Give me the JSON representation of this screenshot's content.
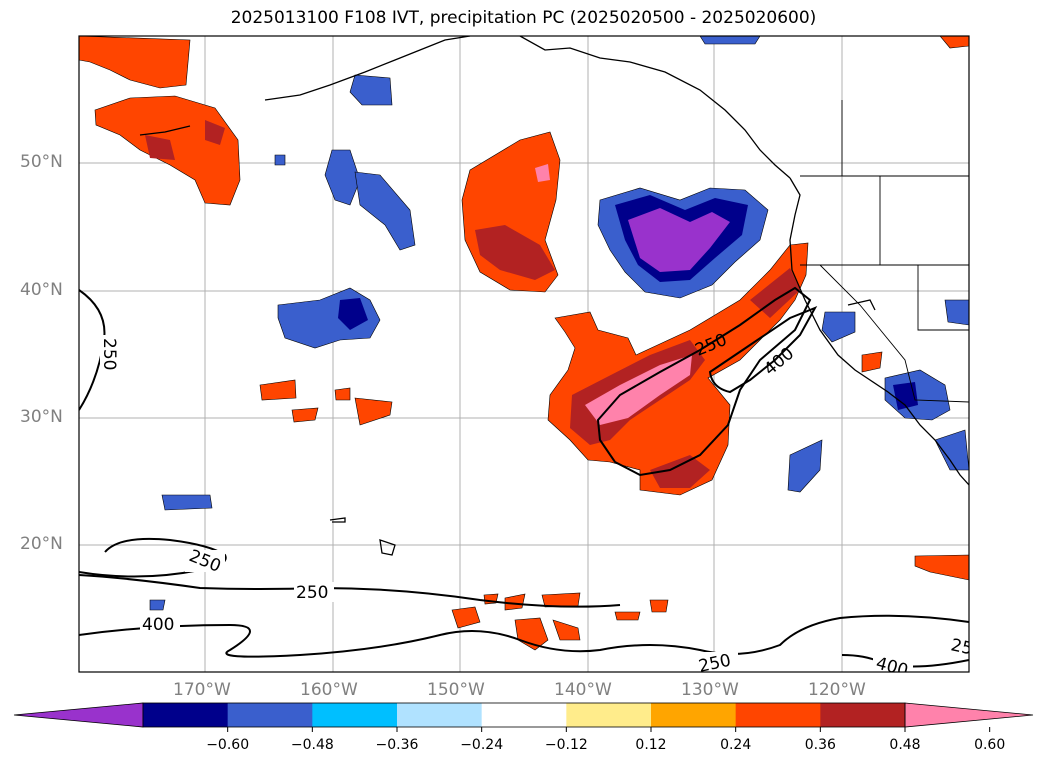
{
  "title": "2025013100 F108 IVT, precipitation PC (2025020500 - 2025020600)",
  "axes": {
    "lat_labels": [
      "50°N",
      "40°N",
      "30°N",
      "20°N"
    ],
    "lon_labels": [
      "170°W",
      "160°W",
      "150°W",
      "140°W",
      "130°W",
      "120°W"
    ]
  },
  "contours": {
    "labels": [
      "250",
      "250",
      "250",
      "250",
      "400",
      "400",
      "400",
      "250",
      "25"
    ]
  },
  "colorbar": {
    "tick_labels": [
      "−0.60",
      "−0.48",
      "−0.36",
      "−0.24",
      "−0.12",
      "0.12",
      "0.24",
      "0.36",
      "0.48",
      "0.60"
    ],
    "colors": [
      "#9932cc",
      "#00008b",
      "#3a5fcd",
      "#00bfff",
      "#b0e2ff",
      "#ffffff",
      "#ffec8b",
      "#ffa500",
      "#ff4500",
      "#b22222",
      "#ff82ab"
    ]
  }
}
